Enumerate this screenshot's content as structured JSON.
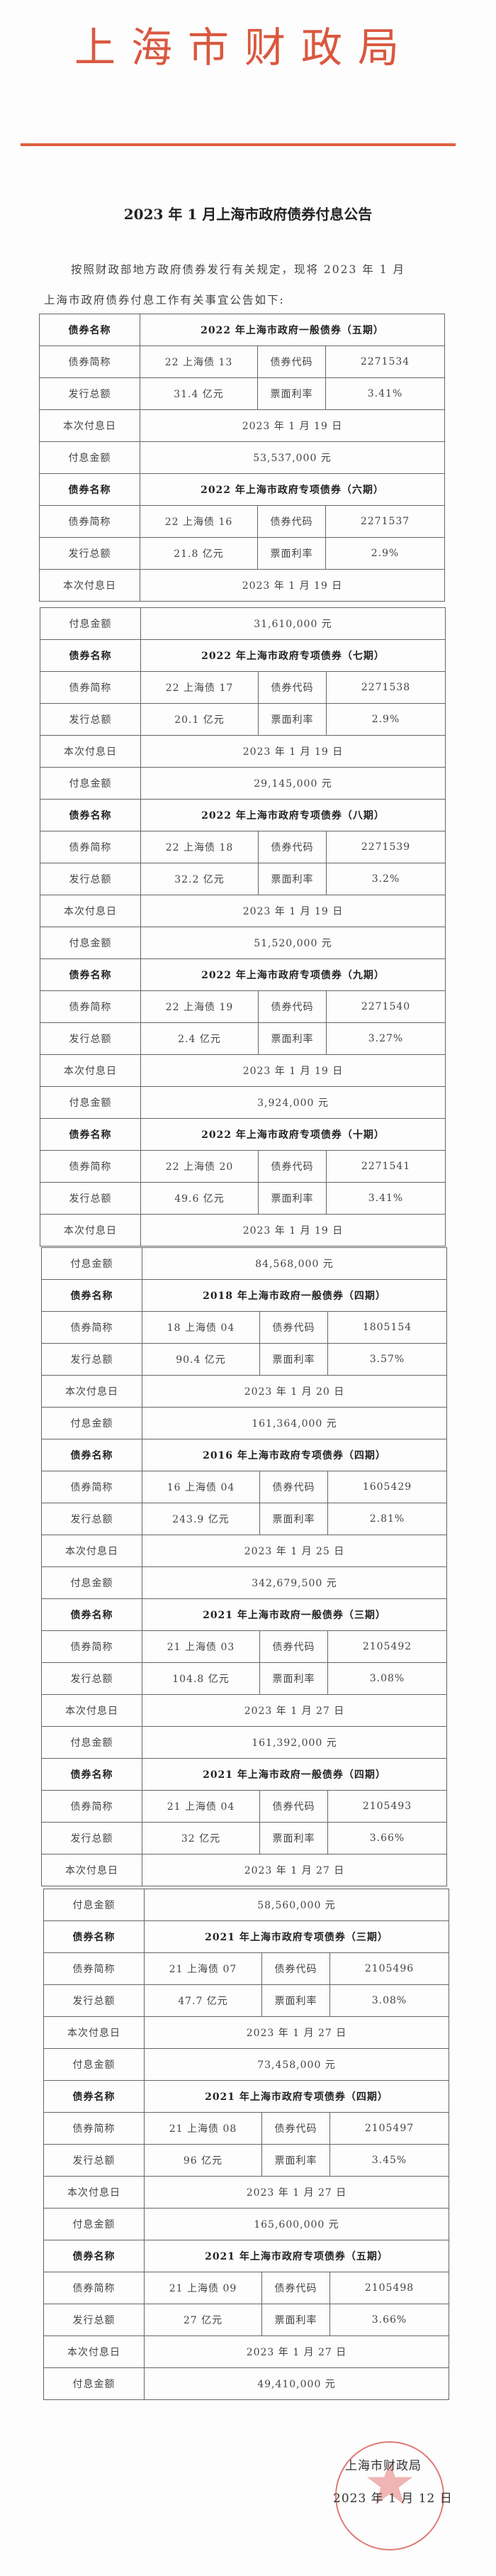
{
  "header": {
    "organization": "上海市财政局",
    "accent_color": "#d9583f",
    "title": "2023 年 1 月上海市政府债券付息公告",
    "intro_line1": "按照财政部地方政府债券发行有关规定，现将 2023 年 1 月",
    "intro_line2": "上海市政府债券付息工作有关事宜公告如下:"
  },
  "labels": {
    "name": "债券名称",
    "short_name": "债券简称",
    "code": "债券代码",
    "amount": "发行总额",
    "rate": "票面利率",
    "date": "本次付息日",
    "interest": "付息金额"
  },
  "bonds": [
    {
      "name": "2022 年上海市政府一般债券（五期）",
      "short_name": "22 上海债 13",
      "code": "2271534",
      "amount": "31.4 亿元",
      "rate": "3.41%",
      "date": "2023 年 1 月 19 日",
      "interest": "53,537,000 元"
    },
    {
      "name": "2022 年上海市政府专项债券（六期）",
      "short_name": "22 上海债 16",
      "code": "2271537",
      "amount": "21.8 亿元",
      "rate": "2.9%",
      "date": "2023 年 1 月 19 日",
      "interest": "31,610,000 元"
    },
    {
      "name": "2022 年上海市政府专项债券（七期）",
      "short_name": "22 上海债 17",
      "code": "2271538",
      "amount": "20.1 亿元",
      "rate": "2.9%",
      "date": "2023 年 1 月 19 日",
      "interest": "29,145,000 元"
    },
    {
      "name": "2022 年上海市政府专项债券（八期）",
      "short_name": "22 上海债 18",
      "code": "2271539",
      "amount": "32.2 亿元",
      "rate": "3.2%",
      "date": "2023 年 1 月 19 日",
      "interest": "51,520,000 元"
    },
    {
      "name": "2022 年上海市政府专项债券（九期）",
      "short_name": "22 上海债 19",
      "code": "2271540",
      "amount": "2.4 亿元",
      "rate": "3.27%",
      "date": "2023 年 1 月 19 日",
      "interest": "3,924,000 元"
    },
    {
      "name": "2022 年上海市政府专项债券（十期）",
      "short_name": "22 上海债 20",
      "code": "2271541",
      "amount": "49.6 亿元",
      "rate": "3.41%",
      "date": "2023 年 1 月 19 日",
      "interest": "84,568,000 元"
    },
    {
      "name": "2018 年上海市政府一般债券（四期）",
      "short_name": "18 上海债 04",
      "code": "1805154",
      "amount": "90.4 亿元",
      "rate": "3.57%",
      "date": "2023 年 1 月 20 日",
      "interest": "161,364,000 元"
    },
    {
      "name": "2016 年上海市政府专项债券（四期）",
      "short_name": "16 上海债 04",
      "code": "1605429",
      "amount": "243.9 亿元",
      "rate": "2.81%",
      "date": "2023 年 1 月 25 日",
      "interest": "342,679,500 元"
    },
    {
      "name": "2021 年上海市政府一般债券（三期）",
      "short_name": "21 上海债 03",
      "code": "2105492",
      "amount": "104.8 亿元",
      "rate": "3.08%",
      "date": "2023 年 1 月 27 日",
      "interest": "161,392,000 元"
    },
    {
      "name": "2021 年上海市政府一般债券（四期）",
      "short_name": "21 上海债 04",
      "code": "2105493",
      "amount": "32 亿元",
      "rate": "3.66%",
      "date": "2023 年 1 月 27 日",
      "interest": "58,560,000 元"
    },
    {
      "name": "2021 年上海市政府专项债券（三期）",
      "short_name": "21 上海债 07",
      "code": "2105496",
      "amount": "47.7 亿元",
      "rate": "3.08%",
      "date": "2023 年 1 月 27 日",
      "interest": "73,458,000 元"
    },
    {
      "name": "2021 年上海市政府专项债券（四期）",
      "short_name": "21 上海债 08",
      "code": "2105497",
      "amount": "96 亿元",
      "rate": "3.45%",
      "date": "2023 年 1 月 27 日",
      "interest": "165,600,000 元"
    },
    {
      "name": "2021 年上海市政府专项债券（五期）",
      "short_name": "21 上海债 09",
      "code": "2105498",
      "amount": "27 亿元",
      "rate": "3.66%",
      "date": "2023 年 1 月 27 日",
      "interest": "49,410,000 元"
    }
  ],
  "signature": {
    "organization": "上海市财政局",
    "date": "2023 年 1 月 12 日",
    "stamp_text": "上海市财政局",
    "stamp_color": "#d65046"
  }
}
